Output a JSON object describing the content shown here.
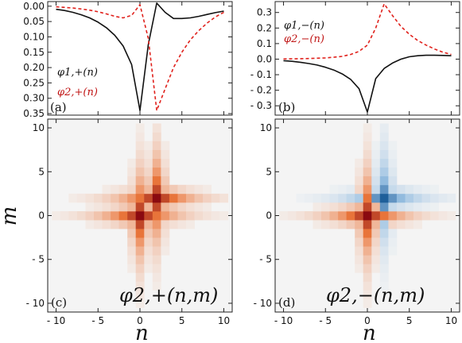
{
  "colors": {
    "black_series": "#111111",
    "red_series": "#e0211c",
    "blue_map": "#1f5f9a",
    "red_map": "#8a0a10"
  },
  "chart_data": [
    {
      "type": "line",
      "panel_label": "(a)",
      "xlim": [
        -11,
        11
      ],
      "ylim": [
        -0.355,
        0.015
      ],
      "yticks": [
        "0.00",
        "0.05",
        "0.10",
        "0.15",
        "0.20",
        "0.25",
        "0.30",
        "0.35"
      ],
      "ytick_values": [
        0.0,
        -0.05,
        -0.1,
        -0.15,
        -0.2,
        -0.25,
        -0.3,
        -0.35
      ],
      "series": [
        {
          "name": "φ1,+(n)",
          "color": "#111111",
          "style": "solid",
          "x": [
            -10,
            -9,
            -8,
            -7,
            -6,
            -5,
            -4,
            -3,
            -2,
            -1,
            0,
            1,
            2,
            3,
            4,
            5,
            6,
            7,
            8,
            9,
            10
          ],
          "values": [
            -0.01,
            -0.014,
            -0.02,
            -0.028,
            -0.038,
            -0.052,
            -0.07,
            -0.095,
            -0.13,
            -0.19,
            -0.34,
            -0.125,
            0.01,
            -0.02,
            -0.04,
            -0.04,
            -0.038,
            -0.033,
            -0.027,
            -0.021,
            -0.016
          ]
        },
        {
          "name": "φ2,+(n)",
          "color": "#e0211c",
          "style": "dashed",
          "x": [
            -10,
            -9,
            -8,
            -7,
            -6,
            -5,
            -4,
            -3,
            -2,
            -1,
            0,
            1,
            2,
            3,
            4,
            5,
            6,
            7,
            8,
            9,
            10
          ],
          "values": [
            -0.002,
            -0.004,
            -0.006,
            -0.009,
            -0.013,
            -0.018,
            -0.025,
            -0.033,
            -0.038,
            -0.03,
            0.005,
            -0.105,
            -0.34,
            -0.27,
            -0.2,
            -0.15,
            -0.11,
            -0.08,
            -0.055,
            -0.035,
            -0.02
          ]
        }
      ]
    },
    {
      "type": "line",
      "panel_label": "(b)",
      "xlim": [
        -11,
        11
      ],
      "ylim": [
        -0.36,
        0.37
      ],
      "yticks": [
        "0.3",
        "0.2",
        "0.1",
        "0.0",
        "- 0.1",
        "- 0.2",
        "- 0.3"
      ],
      "ytick_values": [
        0.3,
        0.2,
        0.1,
        0.0,
        -0.1,
        -0.2,
        -0.3
      ],
      "series": [
        {
          "name": "φ1,−(n)",
          "color": "#111111",
          "style": "solid",
          "x": [
            -10,
            -9,
            -8,
            -7,
            -6,
            -5,
            -4,
            -3,
            -2,
            -1,
            0,
            1,
            2,
            3,
            4,
            5,
            6,
            7,
            8,
            9,
            10
          ],
          "values": [
            -0.01,
            -0.014,
            -0.02,
            -0.028,
            -0.038,
            -0.052,
            -0.07,
            -0.095,
            -0.13,
            -0.19,
            -0.34,
            -0.125,
            -0.06,
            -0.025,
            0.0,
            0.015,
            0.022,
            0.025,
            0.025,
            0.024,
            0.022
          ]
        },
        {
          "name": "φ2,−(n)",
          "color": "#e0211c",
          "style": "dashed",
          "x": [
            -10,
            -9,
            -8,
            -7,
            -6,
            -5,
            -4,
            -3,
            -2,
            -1,
            0,
            1,
            2,
            3,
            4,
            5,
            6,
            7,
            8,
            9,
            10
          ],
          "values": [
            0.001,
            0.002,
            0.003,
            0.004,
            0.006,
            0.008,
            0.012,
            0.018,
            0.03,
            0.05,
            0.09,
            0.2,
            0.355,
            0.28,
            0.21,
            0.16,
            0.12,
            0.09,
            0.065,
            0.045,
            0.03
          ]
        }
      ]
    },
    {
      "type": "heatmap",
      "panel_label": "(c)",
      "annotation": "φ2,+(n,m)",
      "xlim": [
        -11,
        11
      ],
      "ylim": [
        -11,
        11
      ],
      "xticks": [
        "- 10",
        "- 5",
        "0",
        "5",
        "10"
      ],
      "xtick_values": [
        -10,
        -5,
        0,
        5,
        10
      ],
      "yticks": [
        "10",
        "5",
        "0",
        "- 5",
        "- 10"
      ],
      "ytick_values": [
        10,
        5,
        0,
        -5,
        -10
      ],
      "xlabel": "n",
      "ylabel": "m",
      "peaks": [
        {
          "n": 0,
          "m": 0,
          "value": 1.0
        },
        {
          "n": 2,
          "m": 2,
          "value": 1.0
        }
      ]
    },
    {
      "type": "heatmap",
      "panel_label": "(d)",
      "annotation": "φ2,−(n,m)",
      "xlim": [
        -11,
        11
      ],
      "ylim": [
        -11,
        11
      ],
      "xticks": [
        "- 10",
        "- 5",
        "0",
        "5",
        "10"
      ],
      "xtick_values": [
        -10,
        -5,
        0,
        5,
        10
      ],
      "yticks": [
        "10",
        "5",
        "0",
        "- 5",
        "- 10"
      ],
      "ytick_values": [
        10,
        5,
        0,
        -5,
        -10
      ],
      "xlabel": "n",
      "peaks": [
        {
          "n": 0,
          "m": 0,
          "value": 1.0
        },
        {
          "n": 2,
          "m": 2,
          "value": -1.0
        }
      ]
    }
  ]
}
